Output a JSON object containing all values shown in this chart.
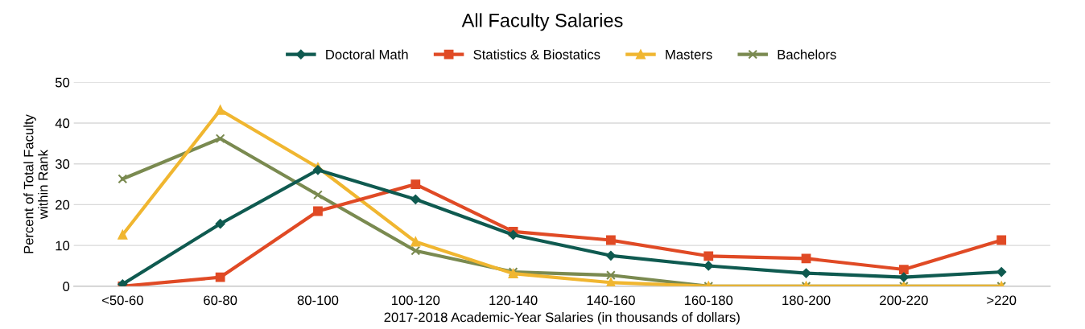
{
  "chart_data": {
    "type": "line",
    "title": "All Faculty Salaries",
    "xlabel": "2017-2018 Academic-Year Salaries (in thousands of dollars)",
    "ylabel": "Percent of Total Faculty\nwithin Rank",
    "categories": [
      "<50-60",
      "60-80",
      "80-100",
      "100-120",
      "120-140",
      "140-160",
      "160-180",
      "180-200",
      "200-220",
      ">220"
    ],
    "series": [
      {
        "name": "Doctoral Math",
        "color": "#0f5a50",
        "marker": "diamond",
        "values": [
          0.5,
          15.3,
          28.5,
          21.3,
          12.6,
          7.5,
          5.0,
          3.2,
          2.2,
          3.5
        ]
      },
      {
        "name": "Statistics & Biostatics",
        "color": "#e04a25",
        "marker": "square",
        "values": [
          0,
          2.2,
          18.4,
          25,
          13.4,
          11.3,
          7.4,
          6.8,
          4.1,
          11.3
        ]
      },
      {
        "name": "Masters",
        "color": "#f0b630",
        "marker": "triangle",
        "values": [
          12.6,
          43.2,
          29.1,
          10.9,
          3.1,
          0.9,
          0,
          0,
          0,
          0
        ]
      },
      {
        "name": "Bachelors",
        "color": "#7a8a50",
        "marker": "cross",
        "values": [
          26.3,
          36.2,
          22.4,
          8.7,
          3.5,
          2.7,
          0,
          0,
          0,
          0
        ]
      }
    ],
    "ylim": [
      0,
      50
    ],
    "yticks": [
      0,
      10,
      20,
      30,
      40,
      50
    ],
    "grid": "y",
    "legend": "top",
    "line_style": "solid"
  }
}
